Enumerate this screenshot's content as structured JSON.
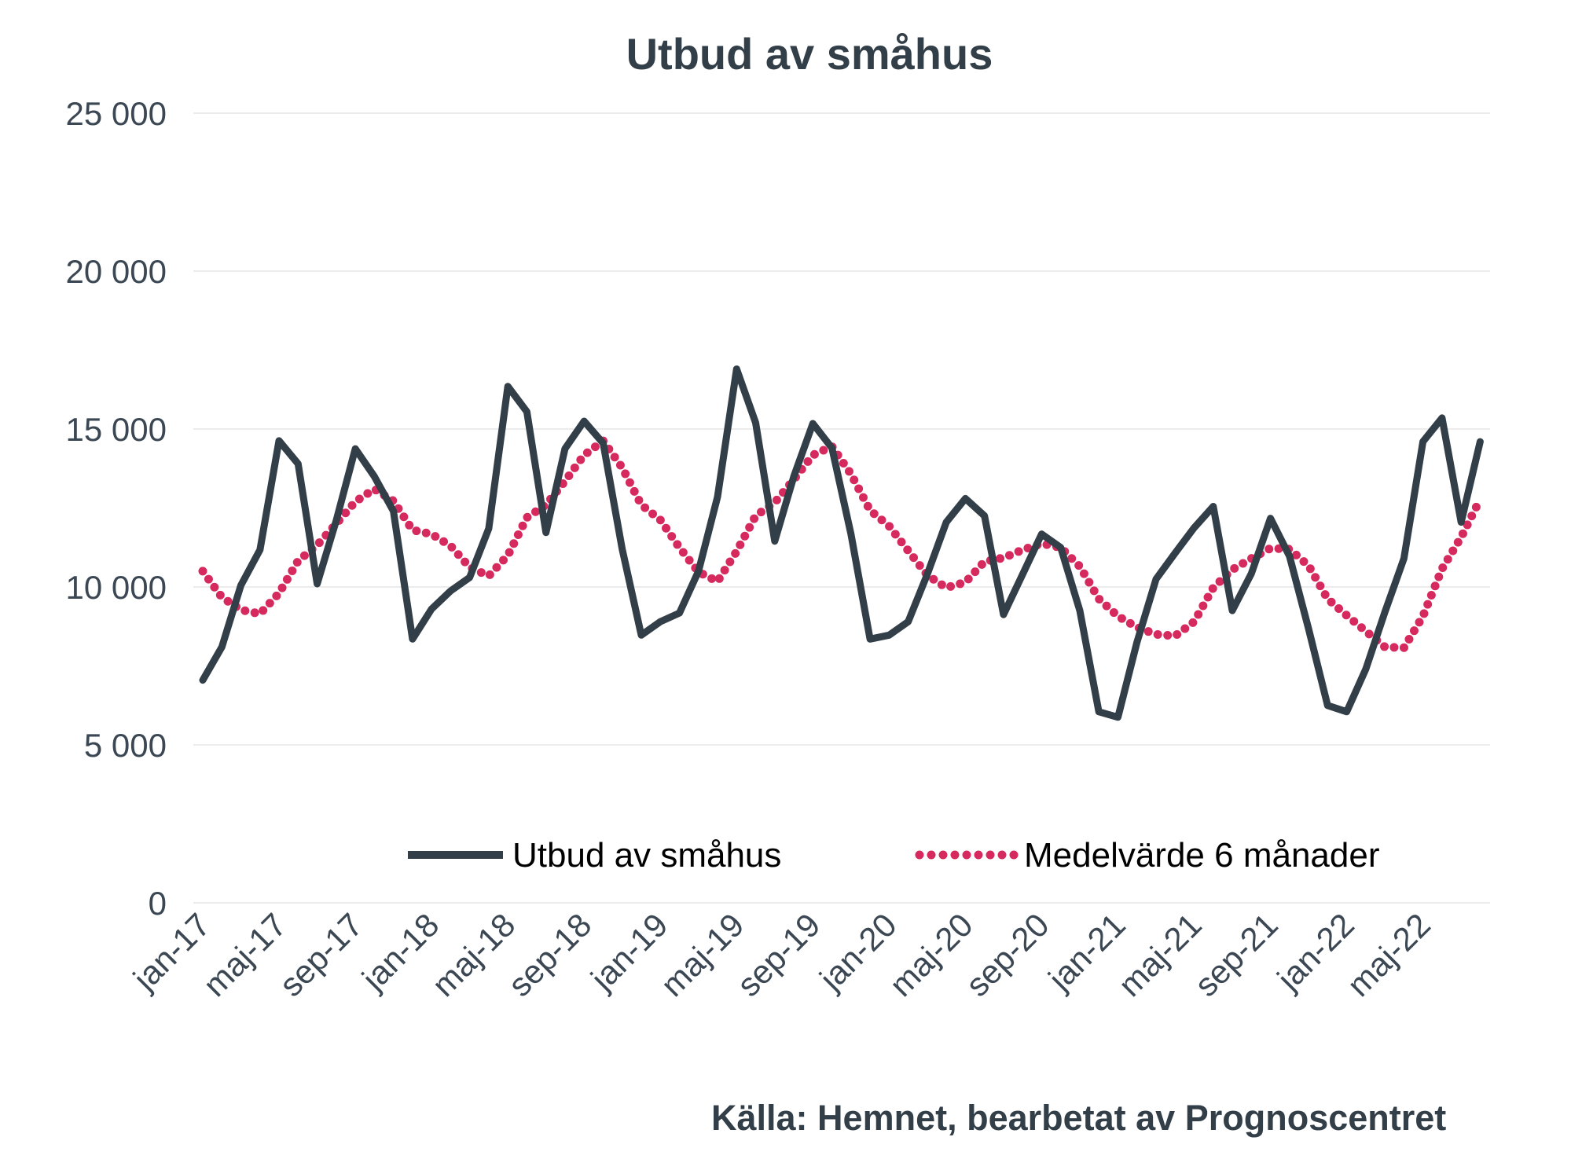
{
  "chart_data": {
    "type": "line",
    "title": "Utbud av småhus",
    "source": "Källa: Hemnet, bearbetat av Prognoscentret",
    "x": [
      "jan-17",
      "feb-17",
      "mar-17",
      "apr-17",
      "maj-17",
      "jun-17",
      "jul-17",
      "aug-17",
      "sep-17",
      "okt-17",
      "nov-17",
      "dec-17",
      "jan-18",
      "feb-18",
      "mar-18",
      "apr-18",
      "maj-18",
      "jun-18",
      "jul-18",
      "aug-18",
      "sep-18",
      "okt-18",
      "nov-18",
      "dec-18",
      "jan-19",
      "feb-19",
      "mar-19",
      "apr-19",
      "maj-19",
      "jun-19",
      "jul-19",
      "aug-19",
      "sep-19",
      "okt-19",
      "nov-19",
      "dec-19",
      "jan-20",
      "feb-20",
      "mar-20",
      "apr-20",
      "maj-20",
      "jun-20",
      "jul-20",
      "aug-20",
      "sep-20",
      "okt-20",
      "nov-20",
      "dec-20",
      "jan-21",
      "feb-21",
      "mar-21",
      "apr-21",
      "maj-21",
      "jun-21",
      "jul-21",
      "aug-21",
      "sep-21",
      "okt-21",
      "nov-21",
      "dec-21",
      "jan-22",
      "feb-22",
      "mar-22",
      "apr-22",
      "maj-22",
      "jun-22",
      "jul-22",
      "aug-22"
    ],
    "x_tick_every": 4,
    "x_tick_labels": [
      "jan-17",
      "maj-17",
      "sep-17",
      "jan-18",
      "maj-18",
      "sep-18",
      "jan-19",
      "maj-19",
      "sep-19",
      "jan-20",
      "maj-20",
      "sep-20",
      "jan-21",
      "maj-21",
      "sep-21",
      "jan-22",
      "maj-22"
    ],
    "ylim": [
      0,
      25000
    ],
    "yticks": [
      0,
      5000,
      10000,
      15000,
      20000,
      25000
    ],
    "ytick_labels": [
      "0",
      "5 000",
      "10 000",
      "15 000",
      "20 000",
      "25 000"
    ],
    "grid": "horizontal",
    "legend_position": "bottom-inside",
    "series": [
      {
        "name": "Utbud av småhus",
        "style": "solid",
        "color": "#333F48",
        "values": [
          7050,
          8100,
          10050,
          11175,
          14630,
          13900,
          10100,
          12100,
          14375,
          13500,
          12400,
          8350,
          9300,
          9875,
          10300,
          11850,
          16350,
          15550,
          11725,
          14375,
          15250,
          14550,
          11200,
          8475,
          8900,
          9175,
          10500,
          12850,
          16900,
          15200,
          11450,
          13500,
          15175,
          14400,
          11675,
          8350,
          8475,
          8900,
          10400,
          12050,
          12800,
          12250,
          9125,
          10400,
          11675,
          11250,
          9250,
          6050,
          5875,
          8250,
          10250,
          11075,
          11875,
          12550,
          9250,
          10425,
          12175,
          10975,
          8675,
          6250,
          6050,
          7400,
          9200,
          10900,
          14600,
          15350,
          12050,
          14600
        ]
      },
      {
        "name": "Medelvärde 6 månader",
        "style": "dotted",
        "color": "#D62A5F",
        "values": [
          10500,
          9675,
          9275,
          9150,
          9800,
          10825,
          11325,
          12000,
          12700,
          13100,
          12725,
          11800,
          11675,
          11300,
          10625,
          10350,
          11000,
          12200,
          12600,
          13350,
          14175,
          14625,
          13775,
          12600,
          12125,
          11250,
          10475,
          10175,
          11125,
          12250,
          12675,
          13400,
          14175,
          14450,
          13575,
          12425,
          11925,
          11150,
          10375,
          9975,
          10150,
          10800,
          10925,
          11175,
          11375,
          11250,
          10650,
          9625,
          9075,
          8725,
          8500,
          8450,
          8900,
          9975,
          10550,
          10900,
          11225,
          11200,
          10675,
          9625,
          9100,
          8600,
          8100,
          8075,
          9075,
          10575,
          11575,
          12775
        ]
      }
    ],
    "colors": {
      "grid": "#ECECEC",
      "axis_text": "#3B4753",
      "title_text": "#333F48",
      "legend_text": "#000000",
      "source_text": "#333F48",
      "background": "#FFFFFF"
    }
  }
}
